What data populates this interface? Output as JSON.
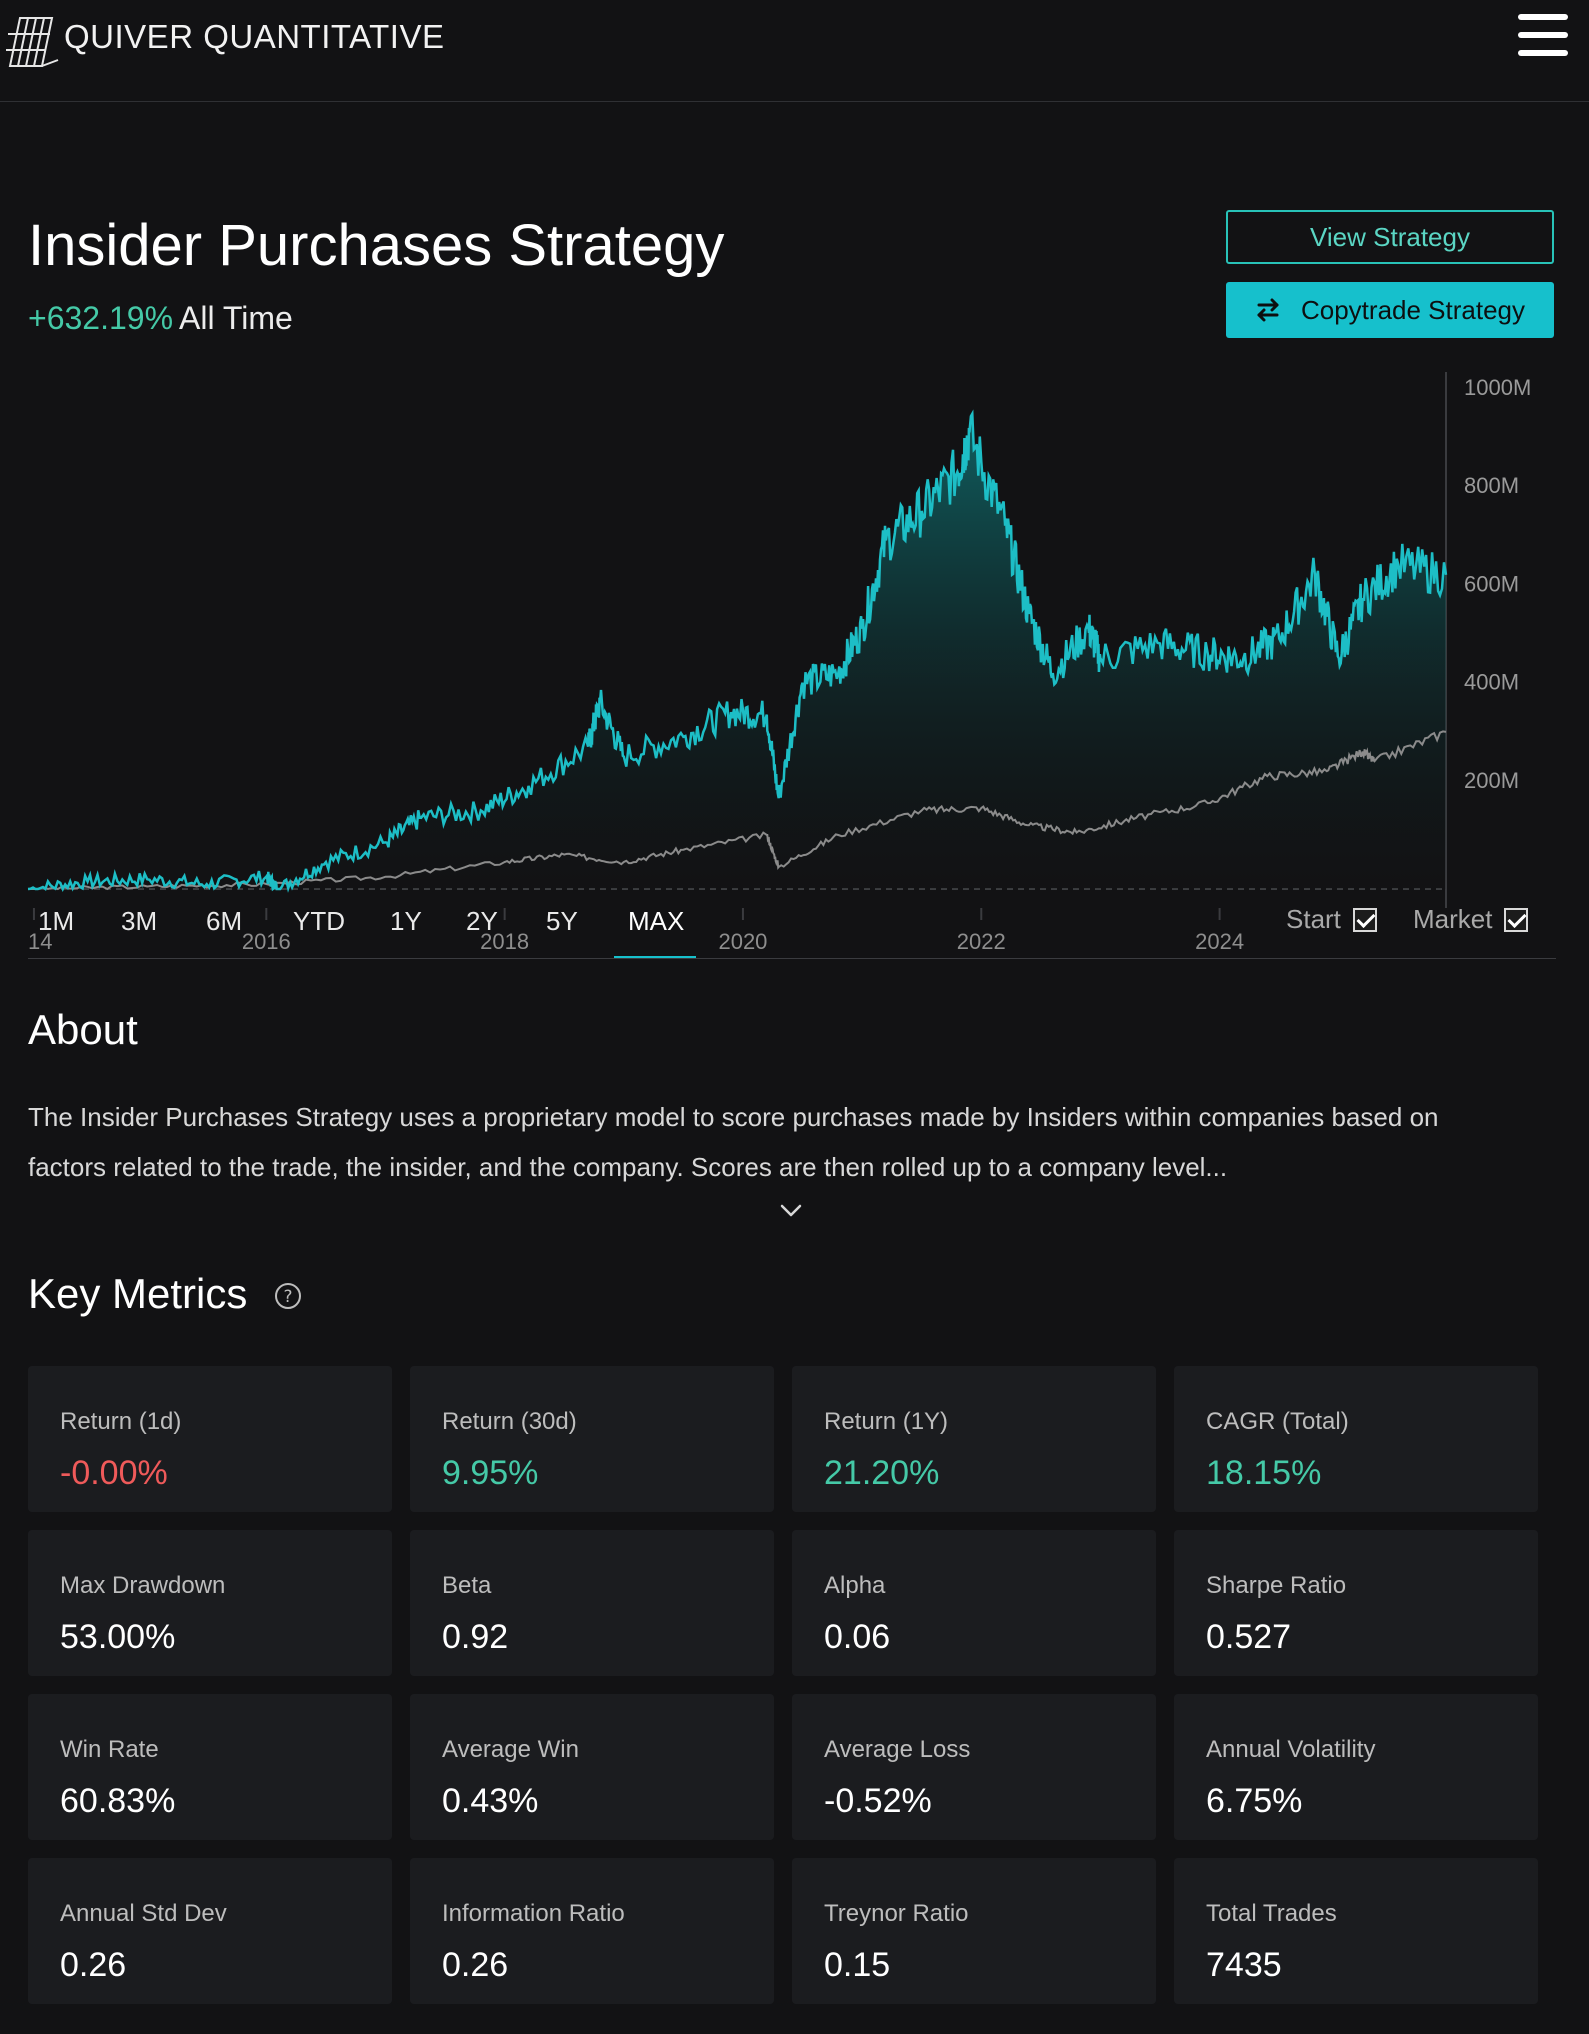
{
  "header": {
    "brand": "QUIVER QUANTITATIVE",
    "menu_icon": "hamburger-icon"
  },
  "strategy": {
    "title": "Insider Purchases Strategy",
    "return_all_time": "+632.19%",
    "return_period": "All Time",
    "view_button": "View Strategy",
    "copy_button": "Copytrade Strategy",
    "copy_icon": "swap-arrows-icon"
  },
  "colors": {
    "accent": "#16c0cc",
    "positive": "#45c9a7",
    "negative": "#ef5a5a",
    "benchmark": "#8b8b8b"
  },
  "chart_data": {
    "type": "area",
    "title": "",
    "xlabel": "",
    "ylabel": "",
    "y_axis_side": "right",
    "ylim": [
      0,
      1000
    ],
    "y_unit": "M",
    "y_tick_labels": [
      "1000M",
      "800M",
      "600M",
      "400M",
      "200M"
    ],
    "x_tick_labels": [
      "14",
      "2016",
      "2018",
      "2020",
      "2022",
      "2024"
    ],
    "x_range": [
      2014.0,
      2025.9
    ],
    "baseline": 0,
    "series": [
      {
        "name": "Strategy",
        "x": [
          2014.0,
          2014.5,
          2015.0,
          2015.5,
          2016.0,
          2016.1,
          2016.5,
          2017.0,
          2017.3,
          2017.8,
          2018.2,
          2018.7,
          2018.8,
          2019.0,
          2019.5,
          2019.9,
          2020.2,
          2020.3,
          2020.5,
          2020.8,
          2021.0,
          2021.2,
          2021.5,
          2021.8,
          2021.9,
          2022.2,
          2022.4,
          2022.6,
          2022.9,
          2023.0,
          2023.5,
          2023.9,
          2024.2,
          2024.5,
          2024.8,
          2025.0,
          2025.2,
          2025.5,
          2025.9
        ],
        "values": [
          0,
          15,
          20,
          10,
          25,
          0,
          55,
          95,
          145,
          160,
          210,
          290,
          380,
          270,
          310,
          360,
          355,
          185,
          420,
          440,
          530,
          710,
          770,
          850,
          930,
          740,
          560,
          440,
          530,
          470,
          500,
          480,
          470,
          510,
          640,
          470,
          590,
          660,
          640
        ]
      },
      {
        "name": "Market",
        "x": [
          2014.0,
          2015.0,
          2016.0,
          2017.0,
          2018.0,
          2018.5,
          2019.0,
          2019.5,
          2020.2,
          2020.3,
          2020.8,
          2021.5,
          2022.0,
          2022.4,
          2022.8,
          2023.3,
          2023.9,
          2024.4,
          2024.9,
          2025.2,
          2025.3,
          2025.9
        ],
        "values": [
          0,
          5,
          10,
          25,
          55,
          70,
          55,
          80,
          110,
          45,
          110,
          160,
          165,
          130,
          115,
          145,
          175,
          230,
          240,
          280,
          260,
          320
        ]
      }
    ]
  },
  "range_selector": {
    "buttons": [
      "1M",
      "3M",
      "6M",
      "YTD",
      "1Y",
      "2Y",
      "5Y",
      "MAX"
    ],
    "active": "MAX",
    "toggles": [
      "Start",
      "Market"
    ]
  },
  "about": {
    "heading": "About",
    "text": "The Insider Purchases Strategy uses a proprietary model to score purchases made by Insiders within companies based on factors related to the trade, the insider, and the company. Scores are then rolled up to a company level..."
  },
  "key_metrics": {
    "heading": "Key Metrics",
    "items": [
      {
        "label": "Return (1d)",
        "value": "-0.00%"
      },
      {
        "label": "Return (30d)",
        "value": "9.95%"
      },
      {
        "label": "Return (1Y)",
        "value": "21.20%"
      },
      {
        "label": "CAGR (Total)",
        "value": "18.15%"
      },
      {
        "label": "Max Drawdown",
        "value": "53.00%"
      },
      {
        "label": "Beta",
        "value": "0.92"
      },
      {
        "label": "Alpha",
        "value": "0.06"
      },
      {
        "label": "Sharpe Ratio",
        "value": "0.527"
      },
      {
        "label": "Win Rate",
        "value": "60.83%"
      },
      {
        "label": "Average Win",
        "value": "0.43%"
      },
      {
        "label": "Average Loss",
        "value": "-0.52%"
      },
      {
        "label": "Annual Volatility",
        "value": "6.75%"
      },
      {
        "label": "Annual Std Dev",
        "value": "0.26"
      },
      {
        "label": "Information Ratio",
        "value": "0.26"
      },
      {
        "label": "Treynor Ratio",
        "value": "0.15"
      },
      {
        "label": "Total Trades",
        "value": "7435"
      }
    ]
  }
}
